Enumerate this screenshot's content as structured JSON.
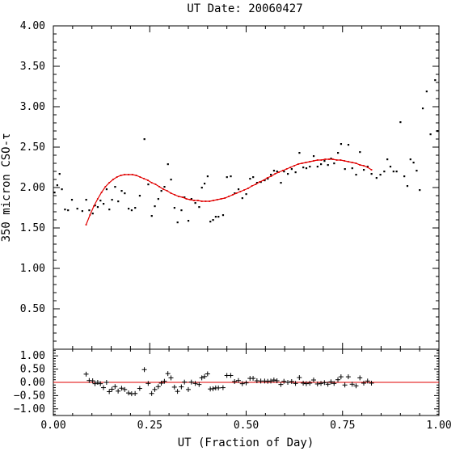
{
  "chart_data": [
    {
      "type": "scatter",
      "title": "UT Date: 20060427",
      "xlabel": "UT (Fraction of Day)",
      "ylabel": "350 micron CSO-τ",
      "xlim": [
        0.0,
        1.0
      ],
      "ylim": [
        0.0,
        4.0
      ],
      "x_ticks": [
        "0.00",
        "0.25",
        "0.50",
        "0.75",
        "1.00"
      ],
      "y_ticks": [
        "0.50",
        "1.00",
        "1.50",
        "2.00",
        "2.50",
        "3.00",
        "3.50",
        "4.00"
      ],
      "grid": false,
      "point_color": "#000000",
      "fit_color": "#e00000",
      "points": [
        [
          0.003,
          1.94
        ],
        [
          0.01,
          2.03
        ],
        [
          0.016,
          2.17
        ],
        [
          0.022,
          1.98
        ],
        [
          0.03,
          1.73
        ],
        [
          0.038,
          1.72
        ],
        [
          0.048,
          1.85
        ],
        [
          0.062,
          1.74
        ],
        [
          0.075,
          1.71
        ],
        [
          0.085,
          1.85
        ],
        [
          0.093,
          1.72
        ],
        [
          0.102,
          1.68
        ],
        [
          0.108,
          1.78
        ],
        [
          0.115,
          1.76
        ],
        [
          0.122,
          1.84
        ],
        [
          0.13,
          1.8
        ],
        [
          0.138,
          1.98
        ],
        [
          0.145,
          1.73
        ],
        [
          0.152,
          1.85
        ],
        [
          0.16,
          2.01
        ],
        [
          0.168,
          1.83
        ],
        [
          0.177,
          1.96
        ],
        [
          0.185,
          1.93
        ],
        [
          0.195,
          1.74
        ],
        [
          0.203,
          1.72
        ],
        [
          0.212,
          1.75
        ],
        [
          0.224,
          1.9
        ],
        [
          0.236,
          2.6
        ],
        [
          0.246,
          2.04
        ],
        [
          0.255,
          1.65
        ],
        [
          0.263,
          1.77
        ],
        [
          0.272,
          1.86
        ],
        [
          0.28,
          1.96
        ],
        [
          0.288,
          2.01
        ],
        [
          0.297,
          2.29
        ],
        [
          0.305,
          2.1
        ],
        [
          0.314,
          1.75
        ],
        [
          0.322,
          1.57
        ],
        [
          0.332,
          1.72
        ],
        [
          0.34,
          1.88
        ],
        [
          0.35,
          1.59
        ],
        [
          0.358,
          1.86
        ],
        [
          0.368,
          1.81
        ],
        [
          0.378,
          1.76
        ],
        [
          0.385,
          2.0
        ],
        [
          0.392,
          2.05
        ],
        [
          0.4,
          2.14
        ],
        [
          0.407,
          1.58
        ],
        [
          0.414,
          1.6
        ],
        [
          0.421,
          1.64
        ],
        [
          0.428,
          1.64
        ],
        [
          0.44,
          1.66
        ],
        [
          0.45,
          2.13
        ],
        [
          0.46,
          2.14
        ],
        [
          0.47,
          1.93
        ],
        [
          0.48,
          1.98
        ],
        [
          0.49,
          1.87
        ],
        [
          0.5,
          1.92
        ],
        [
          0.51,
          2.11
        ],
        [
          0.518,
          2.13
        ],
        [
          0.528,
          2.06
        ],
        [
          0.538,
          2.07
        ],
        [
          0.548,
          2.09
        ],
        [
          0.556,
          2.11
        ],
        [
          0.564,
          2.16
        ],
        [
          0.572,
          2.21
        ],
        [
          0.58,
          2.2
        ],
        [
          0.59,
          2.06
        ],
        [
          0.598,
          2.2
        ],
        [
          0.608,
          2.17
        ],
        [
          0.618,
          2.23
        ],
        [
          0.628,
          2.19
        ],
        [
          0.638,
          2.43
        ],
        [
          0.648,
          2.25
        ],
        [
          0.656,
          2.24
        ],
        [
          0.665,
          2.26
        ],
        [
          0.675,
          2.39
        ],
        [
          0.685,
          2.26
        ],
        [
          0.694,
          2.29
        ],
        [
          0.703,
          2.33
        ],
        [
          0.712,
          2.28
        ],
        [
          0.72,
          2.36
        ],
        [
          0.728,
          2.3
        ],
        [
          0.738,
          2.43
        ],
        [
          0.746,
          2.54
        ],
        [
          0.756,
          2.23
        ],
        [
          0.765,
          2.53
        ],
        [
          0.775,
          2.24
        ],
        [
          0.785,
          2.16
        ],
        [
          0.795,
          2.44
        ],
        [
          0.805,
          2.22
        ],
        [
          0.815,
          2.26
        ],
        [
          0.825,
          2.17
        ],
        [
          0.838,
          2.12
        ],
        [
          0.848,
          2.16
        ],
        [
          0.858,
          2.2
        ],
        [
          0.866,
          2.35
        ],
        [
          0.874,
          2.26
        ],
        [
          0.882,
          2.2
        ],
        [
          0.89,
          2.2
        ],
        [
          0.9,
          2.81
        ],
        [
          0.91,
          2.14
        ],
        [
          0.918,
          2.02
        ],
        [
          0.926,
          2.35
        ],
        [
          0.934,
          2.31
        ],
        [
          0.942,
          2.21
        ],
        [
          0.95,
          1.97
        ],
        [
          0.958,
          2.98
        ],
        [
          0.968,
          3.19
        ],
        [
          0.978,
          2.66
        ],
        [
          0.99,
          3.33
        ],
        [
          0.996,
          2.7
        ]
      ],
      "fit_curve": [
        [
          0.085,
          1.54
        ],
        [
          0.095,
          1.66
        ],
        [
          0.105,
          1.77
        ],
        [
          0.115,
          1.86
        ],
        [
          0.125,
          1.94
        ],
        [
          0.135,
          2.01
        ],
        [
          0.145,
          2.06
        ],
        [
          0.155,
          2.1
        ],
        [
          0.165,
          2.13
        ],
        [
          0.175,
          2.15
        ],
        [
          0.185,
          2.16
        ],
        [
          0.195,
          2.16
        ],
        [
          0.205,
          2.16
        ],
        [
          0.215,
          2.15
        ],
        [
          0.225,
          2.13
        ],
        [
          0.235,
          2.11
        ],
        [
          0.245,
          2.09
        ],
        [
          0.255,
          2.06
        ],
        [
          0.265,
          2.04
        ],
        [
          0.275,
          2.01
        ],
        [
          0.285,
          1.98
        ],
        [
          0.295,
          1.96
        ],
        [
          0.305,
          1.93
        ],
        [
          0.315,
          1.91
        ],
        [
          0.325,
          1.89
        ],
        [
          0.335,
          1.88
        ],
        [
          0.345,
          1.86
        ],
        [
          0.355,
          1.85
        ],
        [
          0.365,
          1.84
        ],
        [
          0.375,
          1.84
        ],
        [
          0.385,
          1.83
        ],
        [
          0.395,
          1.83
        ],
        [
          0.405,
          1.83
        ],
        [
          0.415,
          1.84
        ],
        [
          0.425,
          1.85
        ],
        [
          0.435,
          1.86
        ],
        [
          0.445,
          1.87
        ],
        [
          0.455,
          1.89
        ],
        [
          0.465,
          1.91
        ],
        [
          0.475,
          1.93
        ],
        [
          0.485,
          1.95
        ],
        [
          0.495,
          1.97
        ],
        [
          0.505,
          1.99
        ],
        [
          0.515,
          2.02
        ],
        [
          0.525,
          2.04
        ],
        [
          0.535,
          2.07
        ],
        [
          0.545,
          2.09
        ],
        [
          0.555,
          2.12
        ],
        [
          0.565,
          2.14
        ],
        [
          0.575,
          2.17
        ],
        [
          0.585,
          2.19
        ],
        [
          0.595,
          2.21
        ],
        [
          0.605,
          2.23
        ],
        [
          0.615,
          2.25
        ],
        [
          0.625,
          2.27
        ],
        [
          0.635,
          2.29
        ],
        [
          0.645,
          2.3
        ],
        [
          0.655,
          2.31
        ],
        [
          0.665,
          2.32
        ],
        [
          0.675,
          2.33
        ],
        [
          0.685,
          2.34
        ],
        [
          0.695,
          2.34
        ],
        [
          0.705,
          2.35
        ],
        [
          0.715,
          2.35
        ],
        [
          0.725,
          2.35
        ],
        [
          0.735,
          2.34
        ],
        [
          0.745,
          2.34
        ],
        [
          0.755,
          2.33
        ],
        [
          0.765,
          2.32
        ],
        [
          0.775,
          2.31
        ],
        [
          0.785,
          2.3
        ],
        [
          0.795,
          2.28
        ],
        [
          0.805,
          2.27
        ],
        [
          0.815,
          2.25
        ],
        [
          0.825,
          2.22
        ]
      ]
    },
    {
      "type": "scatter",
      "title": "",
      "xlabel": "UT (Fraction of Day)",
      "ylabel": "",
      "xlim": [
        0.0,
        1.0
      ],
      "ylim": [
        -1.25,
        1.25
      ],
      "x_ticks": [
        "0.00",
        "0.25",
        "0.50",
        "0.75",
        "1.00"
      ],
      "y_ticks": [
        "−1.00",
        "−0.50",
        "0.00",
        "0.50",
        "1.00"
      ],
      "y_tick_values": [
        -1.0,
        -0.5,
        0.0,
        0.5,
        1.0
      ],
      "grid": false,
      "marker": "plus",
      "zero_line_color": "#e00000",
      "points": [
        [
          0.085,
          0.31
        ],
        [
          0.093,
          0.07
        ],
        [
          0.102,
          0.06
        ],
        [
          0.108,
          -0.05
        ],
        [
          0.115,
          0.0
        ],
        [
          0.122,
          -0.05
        ],
        [
          0.13,
          -0.2
        ],
        [
          0.138,
          0.0
        ],
        [
          0.145,
          -0.35
        ],
        [
          0.152,
          -0.26
        ],
        [
          0.16,
          -0.16
        ],
        [
          0.168,
          -0.33
        ],
        [
          0.177,
          -0.22
        ],
        [
          0.185,
          -0.27
        ],
        [
          0.195,
          -0.4
        ],
        [
          0.203,
          -0.43
        ],
        [
          0.212,
          -0.42
        ],
        [
          0.224,
          -0.23
        ],
        [
          0.236,
          0.48
        ],
        [
          0.246,
          -0.04
        ],
        [
          0.255,
          -0.42
        ],
        [
          0.263,
          -0.27
        ],
        [
          0.272,
          -0.16
        ],
        [
          0.28,
          -0.03
        ],
        [
          0.288,
          0.04
        ],
        [
          0.297,
          0.33
        ],
        [
          0.305,
          0.17
        ],
        [
          0.314,
          -0.18
        ],
        [
          0.322,
          -0.34
        ],
        [
          0.332,
          -0.17
        ],
        [
          0.34,
          0.01
        ],
        [
          0.35,
          -0.27
        ],
        [
          0.358,
          0.01
        ],
        [
          0.368,
          -0.04
        ],
        [
          0.378,
          -0.08
        ],
        [
          0.385,
          0.17
        ],
        [
          0.392,
          0.22
        ],
        [
          0.4,
          0.32
        ],
        [
          0.407,
          -0.25
        ],
        [
          0.414,
          -0.24
        ],
        [
          0.421,
          -0.21
        ],
        [
          0.428,
          -0.21
        ],
        [
          0.44,
          -0.2
        ],
        [
          0.45,
          0.26
        ],
        [
          0.46,
          0.26
        ],
        [
          0.47,
          0.03
        ],
        [
          0.48,
          0.07
        ],
        [
          0.49,
          -0.05
        ],
        [
          0.5,
          -0.02
        ],
        [
          0.51,
          0.15
        ],
        [
          0.518,
          0.15
        ],
        [
          0.528,
          0.06
        ],
        [
          0.538,
          0.05
        ],
        [
          0.548,
          0.05
        ],
        [
          0.556,
          0.04
        ],
        [
          0.564,
          0.05
        ],
        [
          0.572,
          0.09
        ],
        [
          0.58,
          0.06
        ],
        [
          0.59,
          -0.08
        ],
        [
          0.598,
          0.04
        ],
        [
          0.608,
          0.0
        ],
        [
          0.618,
          0.03
        ],
        [
          0.628,
          -0.04
        ],
        [
          0.638,
          0.18
        ],
        [
          0.648,
          -0.03
        ],
        [
          0.656,
          -0.05
        ],
        [
          0.665,
          -0.03
        ],
        [
          0.675,
          0.09
        ],
        [
          0.685,
          -0.06
        ],
        [
          0.694,
          -0.04
        ],
        [
          0.703,
          -0.01
        ],
        [
          0.712,
          -0.07
        ],
        [
          0.72,
          0.02
        ],
        [
          0.728,
          -0.04
        ],
        [
          0.738,
          0.1
        ],
        [
          0.746,
          0.21
        ],
        [
          0.756,
          -0.1
        ],
        [
          0.765,
          0.21
        ],
        [
          0.775,
          -0.07
        ],
        [
          0.785,
          -0.13
        ],
        [
          0.795,
          0.17
        ],
        [
          0.805,
          -0.03
        ],
        [
          0.815,
          0.05
        ],
        [
          0.825,
          -0.03
        ]
      ]
    }
  ]
}
